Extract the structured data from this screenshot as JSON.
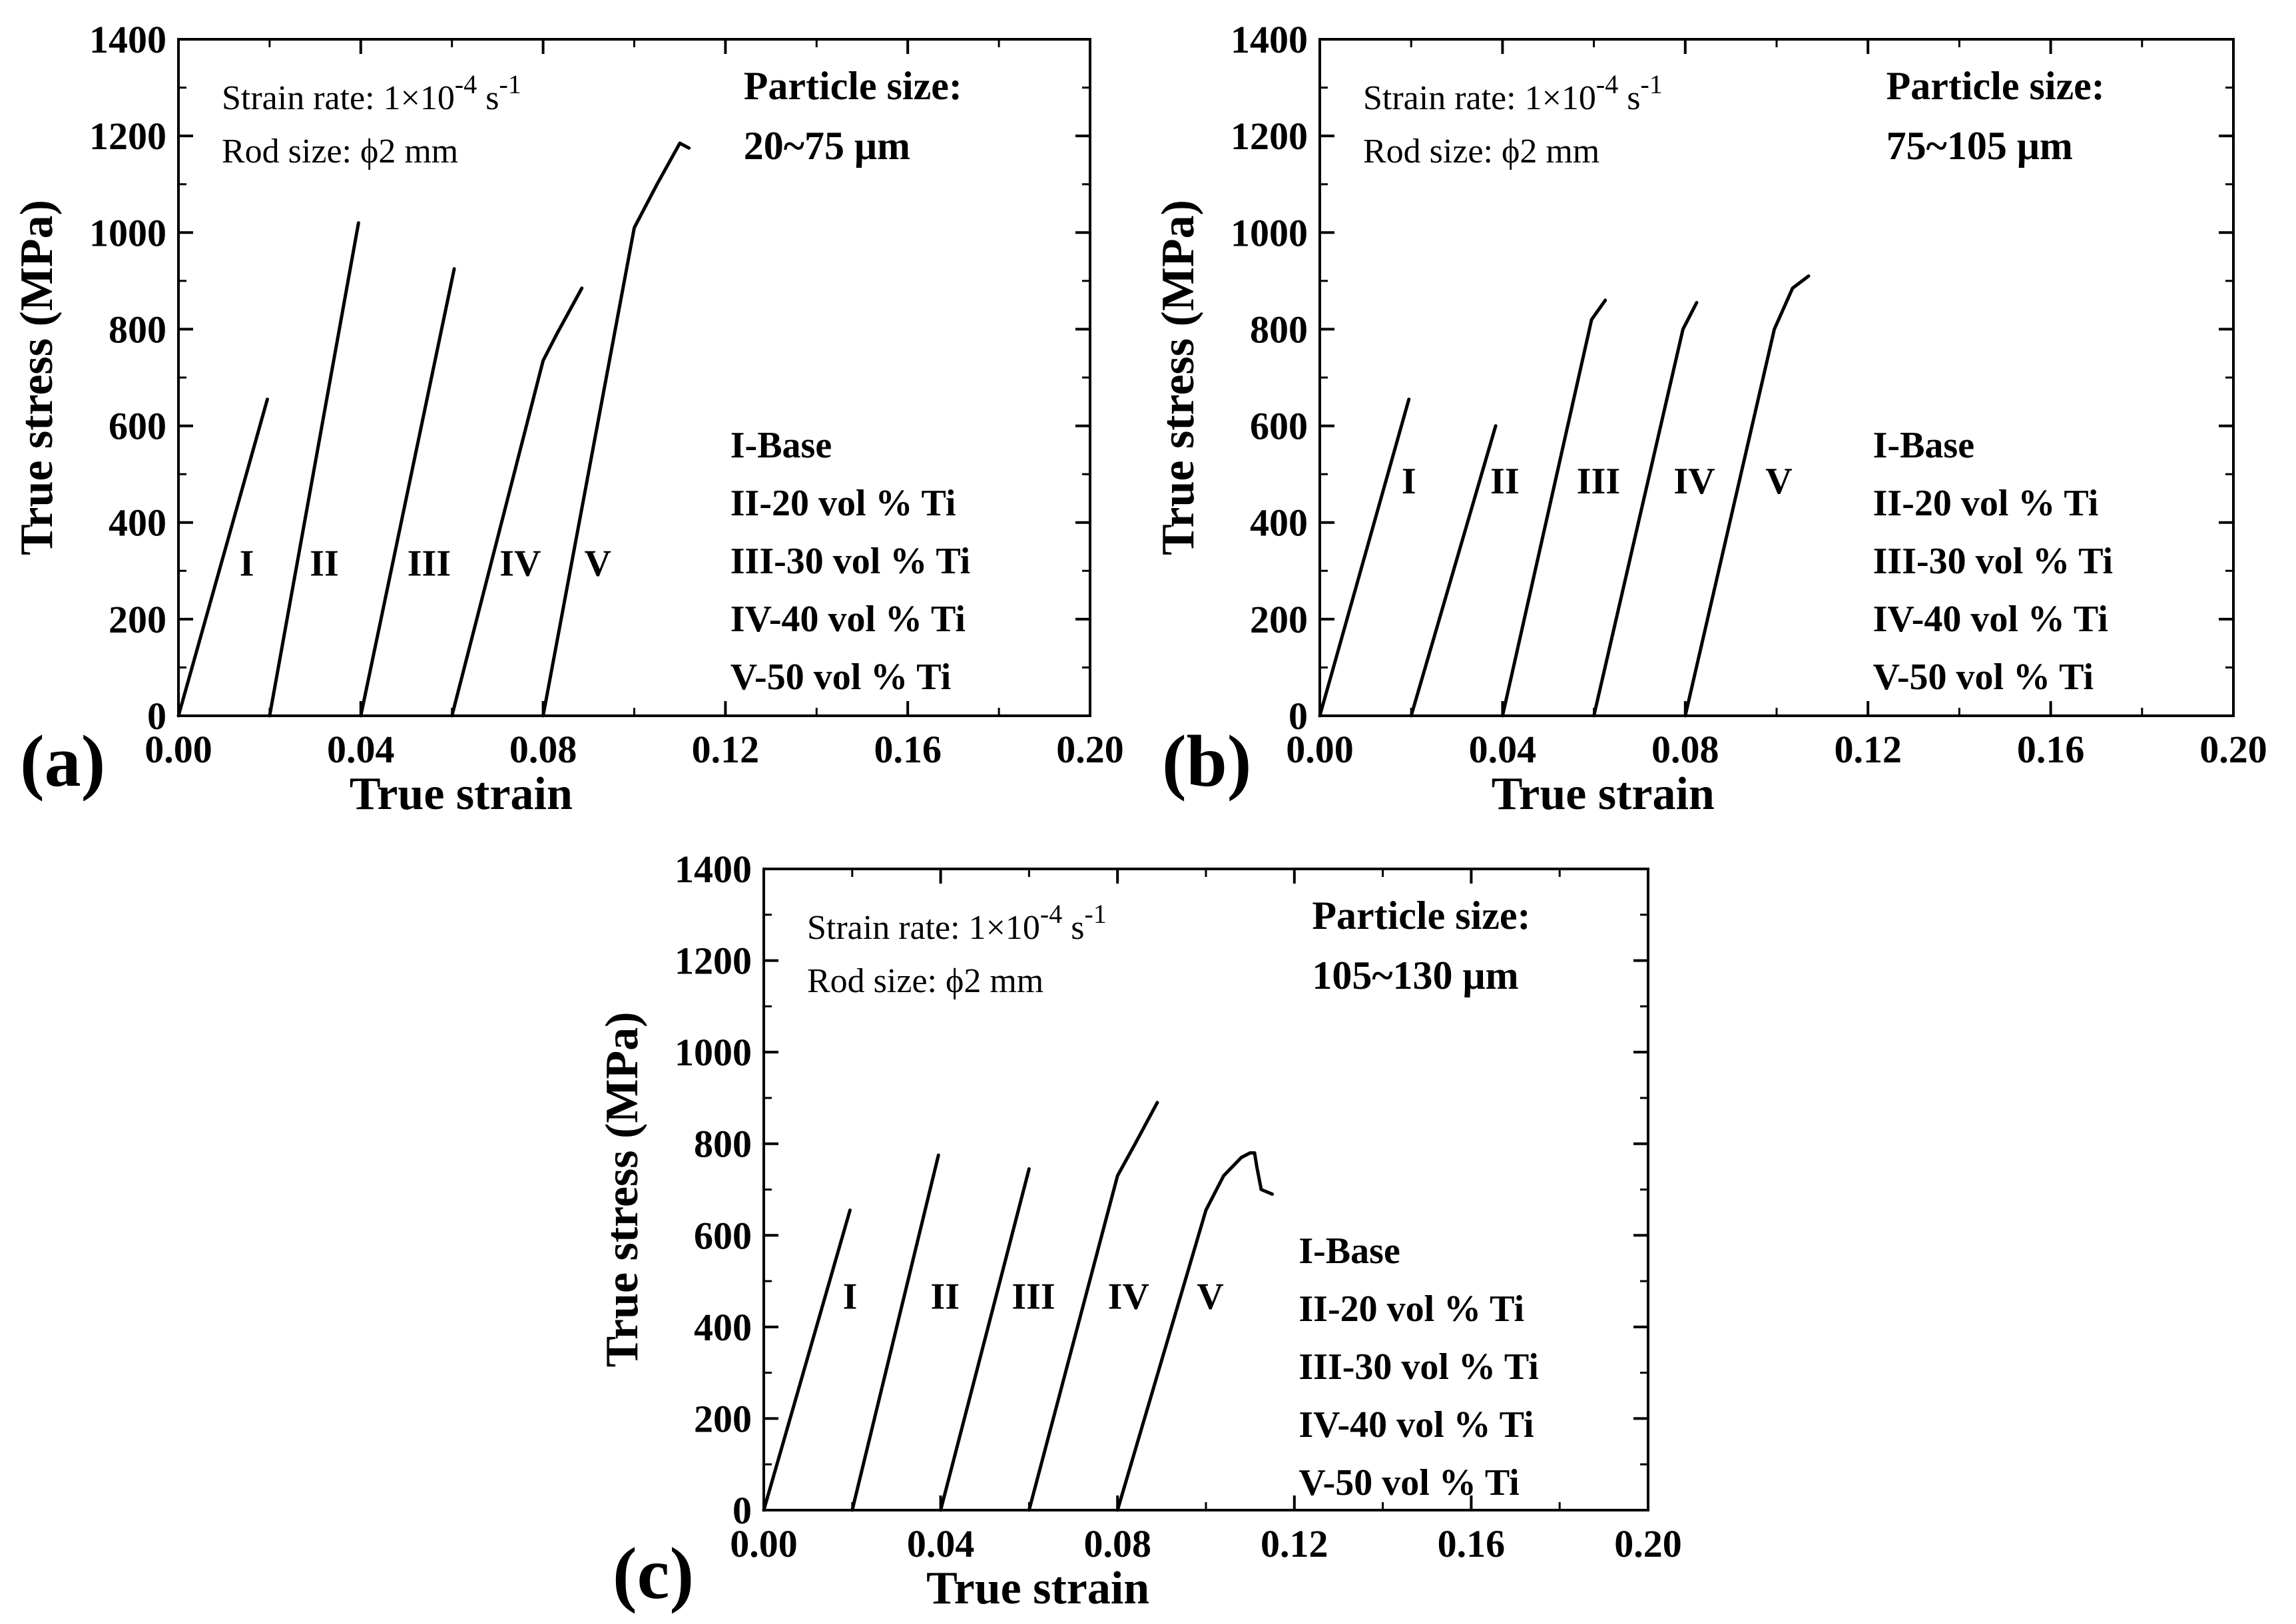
{
  "chart_data": [
    {
      "type": "line",
      "panel_label": "(a)",
      "xlabel": "True strain",
      "ylabel": "True stress (MPa)",
      "xlim": [
        0,
        0.2
      ],
      "ylim": [
        0,
        1400
      ],
      "xticks": [
        "0.00",
        "0.04",
        "0.08",
        "0.12",
        "0.16",
        "0.20"
      ],
      "yticks": [
        "0",
        "200",
        "400",
        "600",
        "800",
        "1000",
        "1200",
        "1400"
      ],
      "annotation": {
        "rate_prefix": "Strain rate: 1×10",
        "rate_exp": "-4",
        "rate_unit": " s",
        "rate_unit_exp": "-1",
        "rod": "Rod size: ϕ2 mm"
      },
      "particle_size_title": "Particle size:",
      "particle_size_value": "20~75 μm",
      "legend": [
        "I-Base",
        "II-20 vol % Ti",
        "III-30 vol % Ti",
        "IV-40 vol % Ti",
        "V-50 vol % Ti"
      ],
      "series": [
        {
          "name": "I",
          "label_pos": [
            0.015,
            290
          ],
          "x": [
            0.0,
            0.0195
          ],
          "y": [
            0,
            655
          ]
        },
        {
          "name": "II",
          "label_pos": [
            0.032,
            290
          ],
          "x": [
            0.02,
            0.0395
          ],
          "y": [
            0,
            1020
          ]
        },
        {
          "name": "III",
          "label_pos": [
            0.055,
            290
          ],
          "x": [
            0.04,
            0.0605
          ],
          "y": [
            0,
            925
          ]
        },
        {
          "name": "IV",
          "label_pos": [
            0.075,
            290
          ],
          "x": [
            0.06,
            0.08,
            0.083,
            0.0885
          ],
          "y": [
            0,
            735,
            790,
            885
          ]
        },
        {
          "name": "V",
          "label_pos": [
            0.092,
            290
          ],
          "x": [
            0.08,
            0.1,
            0.105,
            0.11,
            0.112
          ],
          "y": [
            0,
            1010,
            1100,
            1185,
            1175
          ]
        }
      ]
    },
    {
      "type": "line",
      "panel_label": "(b)",
      "xlabel": "True strain",
      "ylabel": "True stress (MPa)",
      "xlim": [
        0,
        0.2
      ],
      "ylim": [
        0,
        1400
      ],
      "xticks": [
        "0.00",
        "0.04",
        "0.08",
        "0.12",
        "0.16",
        "0.20"
      ],
      "yticks": [
        "0",
        "200",
        "400",
        "600",
        "800",
        "1000",
        "1200",
        "1400"
      ],
      "annotation": {
        "rate_prefix": "Strain rate: 1×10",
        "rate_exp": "-4",
        "rate_unit": " s",
        "rate_unit_exp": "-1",
        "rod": "Rod size: ϕ2 mm"
      },
      "particle_size_title": "Particle size:",
      "particle_size_value": "75~105 μm",
      "legend": [
        "I-Base",
        "II-20 vol % Ti",
        "III-30 vol % Ti",
        "IV-40 vol % Ti",
        "V-50 vol % Ti"
      ],
      "series": [
        {
          "name": "I",
          "label_pos": [
            0.0195,
            460
          ],
          "x": [
            0.0,
            0.0195
          ],
          "y": [
            0,
            655
          ]
        },
        {
          "name": "II",
          "label_pos": [
            0.0405,
            460
          ],
          "x": [
            0.02,
            0.0385
          ],
          "y": [
            0,
            600
          ]
        },
        {
          "name": "III",
          "label_pos": [
            0.061,
            460
          ],
          "x": [
            0.04,
            0.0595,
            0.0625
          ],
          "y": [
            0,
            820,
            860
          ]
        },
        {
          "name": "IV",
          "label_pos": [
            0.082,
            460
          ],
          "x": [
            0.06,
            0.0795,
            0.0825
          ],
          "y": [
            0,
            800,
            855
          ]
        },
        {
          "name": "V",
          "label_pos": [
            0.1005,
            460
          ],
          "x": [
            0.08,
            0.0995,
            0.1035,
            0.107
          ],
          "y": [
            0,
            800,
            885,
            910
          ]
        }
      ]
    },
    {
      "type": "line",
      "panel_label": "(c)",
      "xlabel": "True strain",
      "ylabel": "True stress (MPa)",
      "xlim": [
        0,
        0.2
      ],
      "ylim": [
        0,
        1400
      ],
      "xticks": [
        "0.00",
        "0.04",
        "0.08",
        "0.12",
        "0.16",
        "0.20"
      ],
      "yticks": [
        "0",
        "200",
        "400",
        "600",
        "800",
        "1000",
        "1200",
        "1400"
      ],
      "annotation": {
        "rate_prefix": "Strain rate: 1×10",
        "rate_exp": "-4",
        "rate_unit": " s",
        "rate_unit_exp": "-1",
        "rod": "Rod size: ϕ2 mm"
      },
      "particle_size_title": "Particle size:",
      "particle_size_value": "105~130 μm",
      "legend": [
        "I-Base",
        "II-20 vol % Ti",
        "III-30 vol % Ti",
        "IV-40 vol % Ti",
        "V-50 vol % Ti"
      ],
      "series": [
        {
          "name": "I",
          "label_pos": [
            0.0195,
            440
          ],
          "x": [
            0.0,
            0.0195
          ],
          "y": [
            0,
            655
          ]
        },
        {
          "name": "II",
          "label_pos": [
            0.041,
            440
          ],
          "x": [
            0.02,
            0.0395
          ],
          "y": [
            0,
            775
          ]
        },
        {
          "name": "III",
          "label_pos": [
            0.061,
            440
          ],
          "x": [
            0.04,
            0.06
          ],
          "y": [
            0,
            745
          ]
        },
        {
          "name": "IV",
          "label_pos": [
            0.0825,
            440
          ],
          "x": [
            0.06,
            0.08,
            0.084,
            0.089
          ],
          "y": [
            0,
            730,
            800,
            890
          ]
        },
        {
          "name": "V",
          "label_pos": [
            0.101,
            440
          ],
          "x": [
            0.08,
            0.1,
            0.104,
            0.108,
            0.11,
            0.111,
            0.1115,
            0.1125,
            0.115
          ],
          "y": [
            0,
            655,
            730,
            770,
            780,
            780,
            750,
            700,
            690
          ]
        }
      ]
    }
  ]
}
